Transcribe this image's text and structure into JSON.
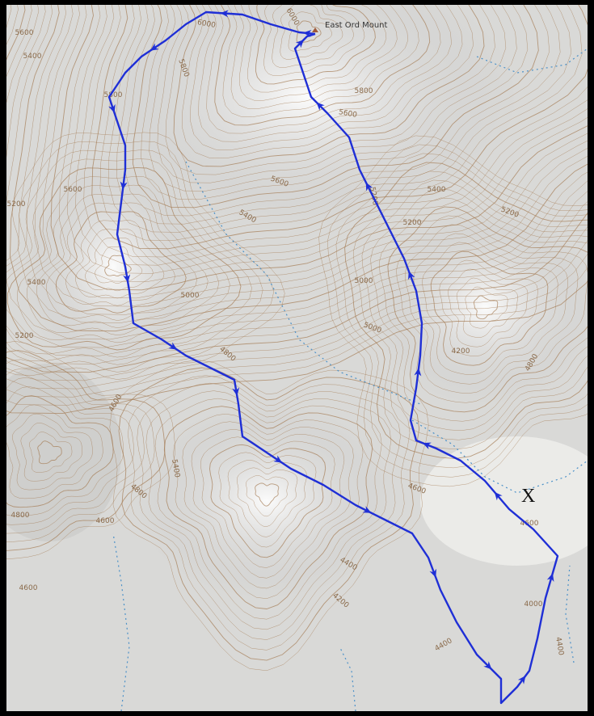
{
  "map": {
    "peak_label": "East Ord Mount",
    "marker": "X",
    "contour_labels": [
      6000,
      6000,
      5800,
      5800,
      5800,
      5600,
      5600,
      5600,
      5400,
      5400,
      5200,
      5200,
      5200,
      5000,
      5000,
      4800,
      5000,
      5200,
      5400,
      5200,
      5400,
      5600,
      5400,
      4800,
      4800,
      4600,
      4600,
      4400,
      4200,
      4400,
      4600,
      4600,
      4400,
      4000,
      4200,
      4800,
      4600
    ]
  }
}
